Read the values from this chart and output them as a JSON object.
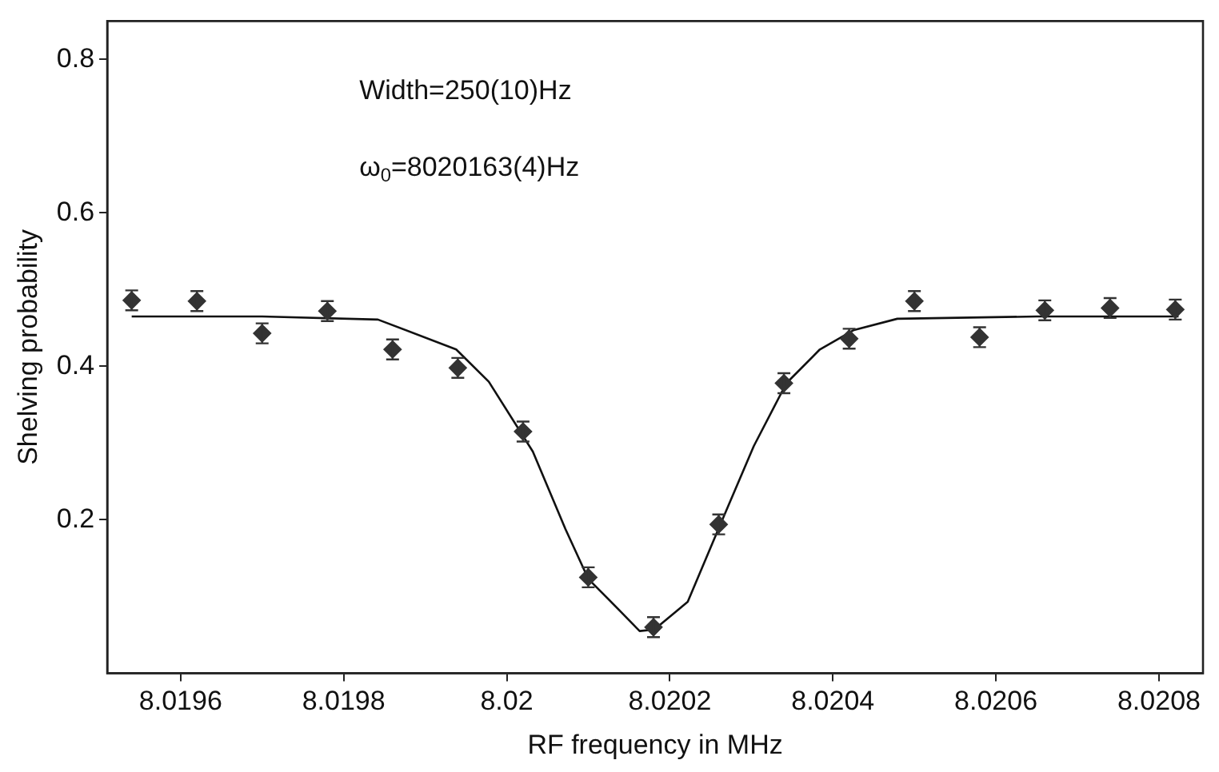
{
  "chart_data": {
    "type": "scatter",
    "xlabel": "RF frequency in MHz",
    "ylabel": "Shelving probability",
    "xlim": [
      8.01951,
      8.020854
    ],
    "xticks": [
      8.0196,
      8.0198,
      8.02,
      8.0202,
      8.0204,
      8.0206,
      8.0208
    ],
    "ylim": [
      0,
      0.85
    ],
    "yticks": [
      0.2,
      0.4,
      0.6,
      0.8
    ],
    "grid": false,
    "legend": false,
    "annotations": [
      "Width=250(10)Hz",
      "ω$_{0}$=8020163(4)Hz"
    ],
    "series": [
      {
        "color": "#333333",
        "marker": "diamond",
        "x": [
          8.01954,
          8.01962,
          8.0197,
          8.01978,
          8.01986,
          8.01994,
          8.02002,
          8.0201,
          8.02018,
          8.02026,
          8.02034,
          8.02042,
          8.0205,
          8.02058,
          8.02066,
          8.02074,
          8.02082
        ],
        "values": [
          0.486,
          0.485,
          0.443,
          0.472,
          0.422,
          0.398,
          0.315,
          0.125,
          0.06,
          0.194,
          0.378,
          0.436,
          0.485,
          0.438,
          0.473,
          0.476,
          0.474
        ],
        "errors": [
          0.013,
          0.013,
          0.013,
          0.013,
          0.013,
          0.013,
          0.013,
          0.013,
          0.013,
          0.013,
          0.013,
          0.013,
          0.013,
          0.013,
          0.013,
          0.013,
          0.013
        ]
      },
      {
        "type": "line",
        "color": "#111111",
        "marker": "none",
        "x": [
          8.01954,
          8.0197,
          8.019842,
          8.019938,
          8.019978,
          8.020032,
          8.020072,
          8.0201,
          8.020141,
          8.020163,
          8.020181,
          8.020222,
          8.020262,
          8.020303,
          8.020343,
          8.020384,
          8.020425,
          8.020479,
          8.02065,
          8.020824
        ],
        "values": [
          0.465,
          0.465,
          0.461,
          0.422,
          0.38,
          0.289,
          0.188,
          0.123,
          0.079,
          0.055,
          0.057,
          0.093,
          0.194,
          0.296,
          0.378,
          0.422,
          0.447,
          0.462,
          0.465,
          0.465
        ]
      }
    ]
  }
}
